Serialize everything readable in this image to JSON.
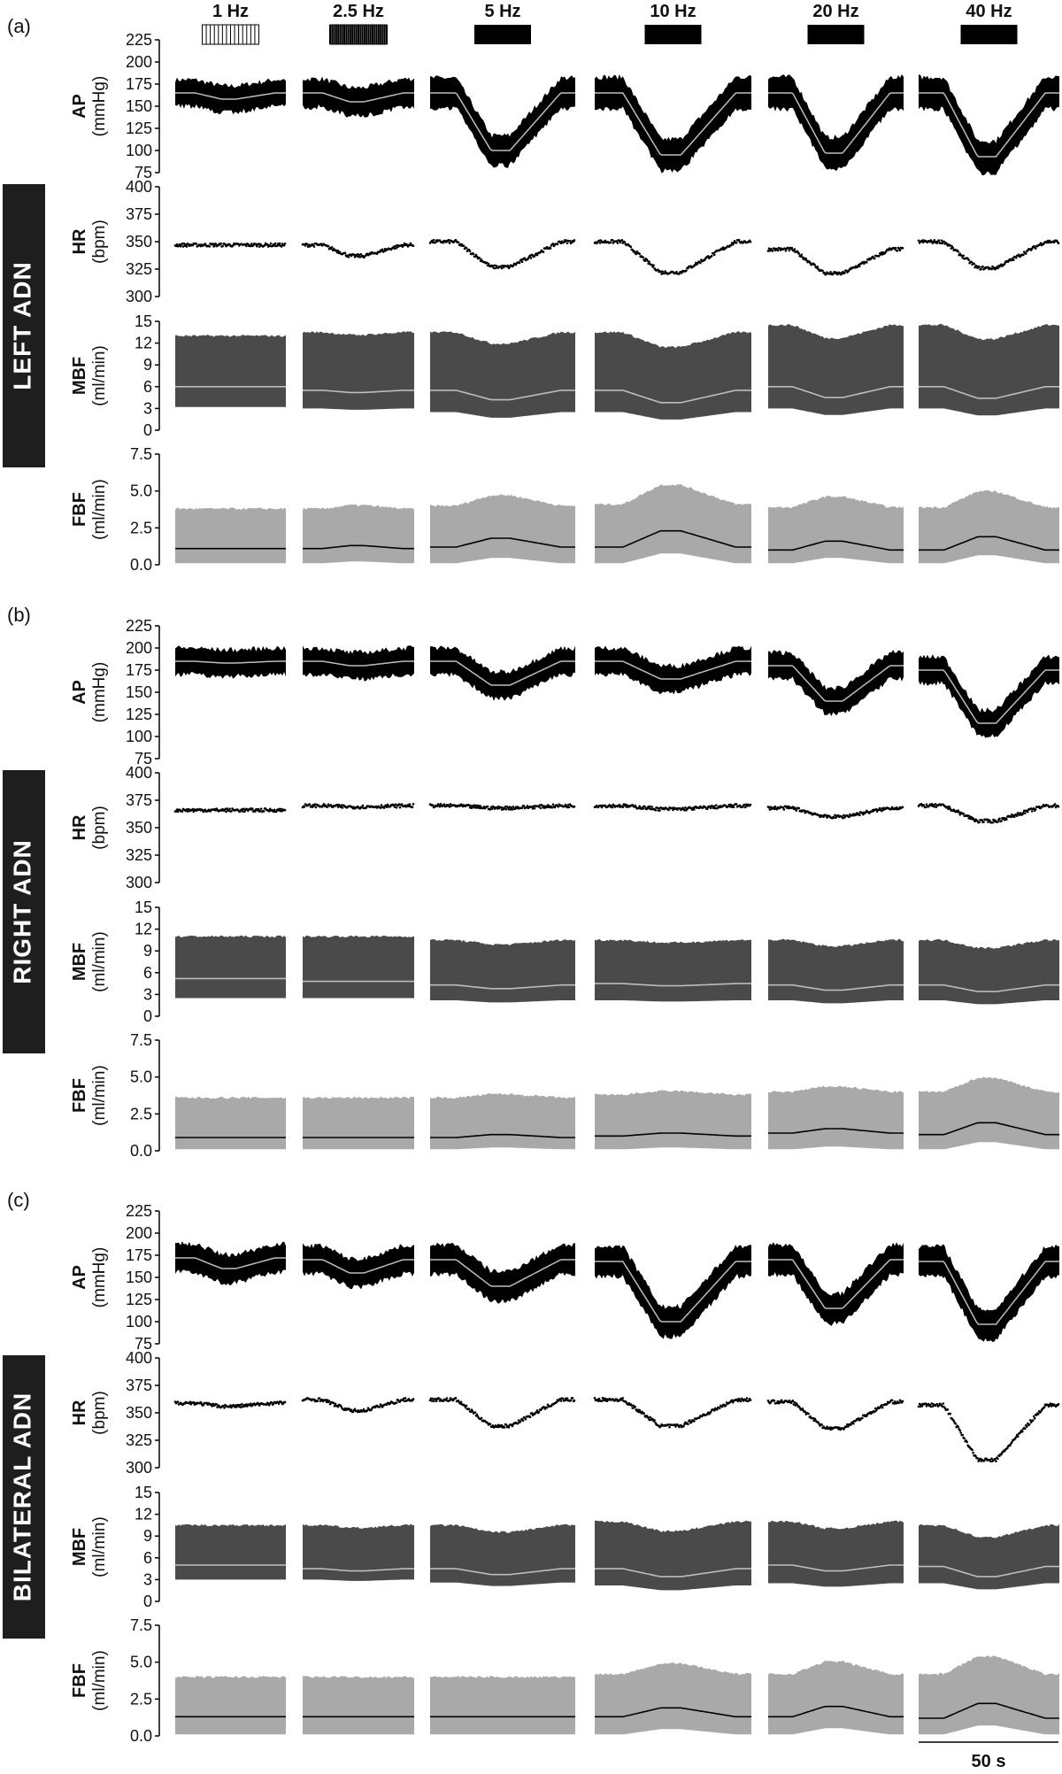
{
  "chart_data": {
    "type": "line",
    "frequencies": [
      "1 Hz",
      "2.5 Hz",
      "5 Hz",
      "10 Hz",
      "20 Hz",
      "40 Hz"
    ],
    "scale_bar": "50 s",
    "colors": {
      "AP": "#000000",
      "HR": "#000000",
      "MBF": "#4a4a4a",
      "FBF": "#a9a9a9",
      "mean_on_dark": "#bdbdbd",
      "mean_on_light": "#000000",
      "condition_box": "#1e1e1e"
    },
    "variables": [
      {
        "key": "AP",
        "label": "AP",
        "unit": "(mmHg)",
        "ticks": [
          "225",
          "200",
          "175",
          "150",
          "125",
          "100",
          "75"
        ],
        "ylim": [
          75,
          225
        ],
        "style": "envelope"
      },
      {
        "key": "HR",
        "label": "HR",
        "unit": "(bpm)",
        "ticks": [
          "400",
          "375",
          "350",
          "325",
          "300"
        ],
        "ylim": [
          300,
          400
        ],
        "style": "dots"
      },
      {
        "key": "MBF",
        "label": "MBF",
        "unit": "(ml/min)",
        "ticks": [
          "15",
          "12",
          "9",
          "6",
          "3",
          "0"
        ],
        "ylim": [
          0,
          15
        ],
        "style": "envelope"
      },
      {
        "key": "FBF",
        "label": "FBF",
        "unit": "(ml/min)",
        "ticks": [
          "7.5",
          "5.0",
          "2.5",
          "0.0"
        ],
        "ylim": [
          0,
          7.5
        ],
        "style": "envelope"
      }
    ],
    "panels": [
      {
        "label": "(a)",
        "condition": "LEFT ADN",
        "traces": {
          "AP": {
            "baseline": [
              165,
              165,
              165,
              165,
              165,
              165
            ],
            "trough": [
              158,
              155,
              100,
              95,
              97,
              93
            ],
            "half_width": [
              15,
              16,
              17,
              18,
              18,
              18
            ]
          },
          "HR": {
            "baseline": [
              347,
              347,
              350,
              350,
              343,
              350
            ],
            "trough": [
              347,
              337,
              327,
              322,
              321,
              326
            ]
          },
          "MBF": {
            "baseline": [
              6,
              5.5,
              5.5,
              5.5,
              6,
              6
            ],
            "trough": [
              6,
              5.2,
              4.2,
              3.8,
              4.5,
              4.4
            ],
            "max": [
              13,
              13.5,
              13.5,
              13.5,
              14.5,
              14.5
            ],
            "min": [
              3.2,
              3,
              2.5,
              2.5,
              3,
              3
            ]
          },
          "FBF": {
            "baseline": [
              1.1,
              1.1,
              1.2,
              1.2,
              1.0,
              1.0
            ],
            "peak": [
              1.1,
              1.3,
              1.8,
              2.3,
              1.6,
              1.9
            ],
            "max": [
              3.8,
              3.8,
              4.0,
              4.1,
              3.9,
              3.9
            ],
            "min": [
              0.1,
              0.1,
              0.1,
              0.1,
              0.1,
              0.1
            ]
          }
        }
      },
      {
        "label": "(b)",
        "condition": "RIGHT ADN",
        "traces": {
          "AP": {
            "baseline": [
              185,
              185,
              185,
              185,
              180,
              175
            ],
            "trough": [
              183,
              180,
              158,
              165,
              140,
              115
            ],
            "half_width": [
              15,
              15,
              15,
              15,
              15,
              15
            ]
          },
          "HR": {
            "baseline": [
              366,
              370,
              370,
              370,
              368,
              370
            ],
            "trough": [
              366,
              369,
              368,
              367,
              360,
              356
            ]
          },
          "MBF": {
            "baseline": [
              5.2,
              4.8,
              4.3,
              4.5,
              4.3,
              4.3
            ],
            "trough": [
              5.2,
              4.8,
              3.8,
              4.2,
              3.6,
              3.4
            ],
            "max": [
              11,
              11,
              10.5,
              10.5,
              10.5,
              10.5
            ],
            "min": [
              2.5,
              2.5,
              2.2,
              2.2,
              2.2,
              2.2
            ]
          },
          "FBF": {
            "baseline": [
              0.9,
              0.9,
              0.9,
              1.0,
              1.2,
              1.1
            ],
            "peak": [
              0.9,
              0.9,
              1.1,
              1.2,
              1.5,
              1.9
            ],
            "max": [
              3.6,
              3.6,
              3.6,
              3.8,
              4.0,
              4.0
            ],
            "min": [
              0.1,
              0.1,
              0.1,
              0.1,
              0.1,
              0.1
            ]
          }
        }
      },
      {
        "label": "(c)",
        "condition": "BILATERAL ADN",
        "traces": {
          "AP": {
            "baseline": [
              172,
              170,
              170,
              168,
              170,
              168
            ],
            "trough": [
              160,
              155,
              140,
              100,
              115,
              97
            ],
            "half_width": [
              16,
              16,
              17,
              17,
              17,
              17
            ]
          },
          "HR": {
            "baseline": [
              359,
              362,
              362,
              362,
              360,
              357
            ],
            "trough": [
              356,
              352,
              338,
              338,
              336,
              307
            ]
          },
          "MBF": {
            "baseline": [
              5,
              4.5,
              4.5,
              4.5,
              5,
              4.8
            ],
            "trough": [
              5,
              4.2,
              3.7,
              3.4,
              4.2,
              3.4
            ],
            "max": [
              10.5,
              10.5,
              10.5,
              11,
              11,
              10.5
            ],
            "min": [
              3,
              3,
              2.6,
              2.2,
              2.5,
              2.5
            ]
          },
          "FBF": {
            "baseline": [
              1.3,
              1.3,
              1.3,
              1.3,
              1.3,
              1.2
            ],
            "peak": [
              1.3,
              1.3,
              1.3,
              1.9,
              2.0,
              2.2
            ],
            "max": [
              4.0,
              4.0,
              4.0,
              4.2,
              4.2,
              4.2
            ],
            "min": [
              0.1,
              0.1,
              0.1,
              0.1,
              0.1,
              0.1
            ]
          }
        }
      }
    ]
  }
}
